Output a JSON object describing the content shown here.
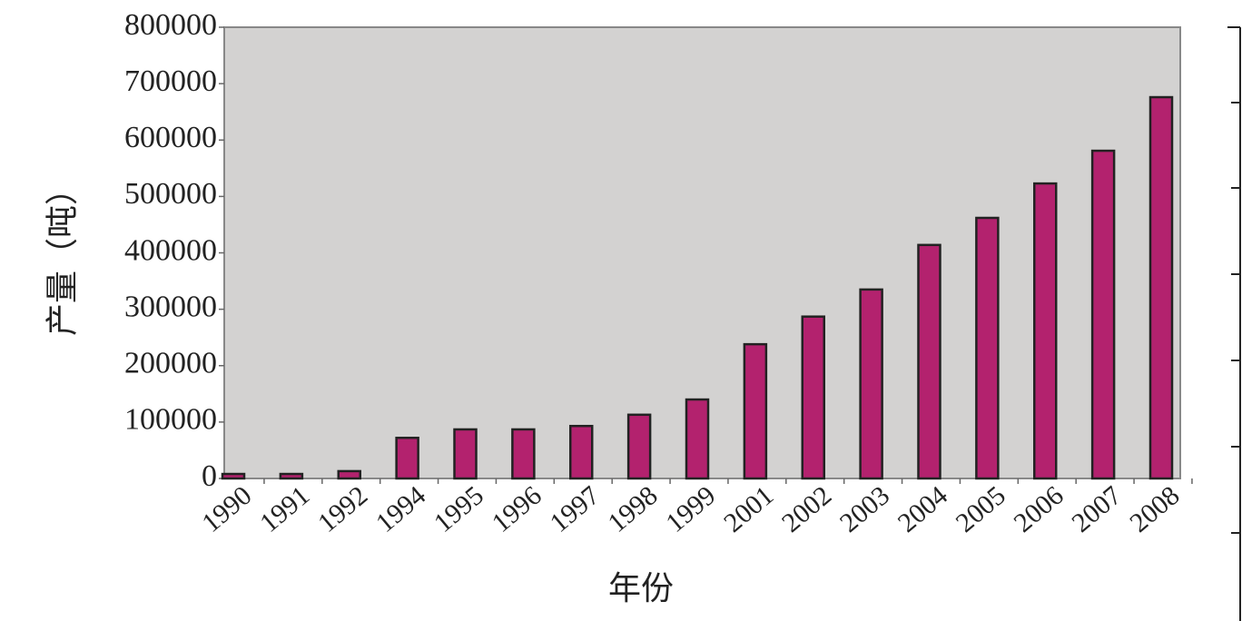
{
  "chart_data": {
    "type": "bar",
    "x_label": "年份",
    "y_label": "产量（吨）",
    "categories": [
      "1990",
      "1991",
      "1992",
      "1994",
      "1995",
      "1996",
      "1997",
      "1998",
      "1999",
      "2001",
      "2002",
      "2003",
      "2004",
      "2005",
      "2006",
      "2007",
      "2008"
    ],
    "values": [
      8000,
      8000,
      13000,
      72000,
      87000,
      87000,
      93000,
      113000,
      140000,
      238000,
      287000,
      335000,
      414000,
      462000,
      523000,
      581000,
      676000
    ],
    "color": "#b3226e",
    "ylim": [
      0,
      800000
    ],
    "yticks": [
      0,
      100000,
      200000,
      300000,
      400000,
      500000,
      600000,
      700000,
      800000
    ]
  }
}
